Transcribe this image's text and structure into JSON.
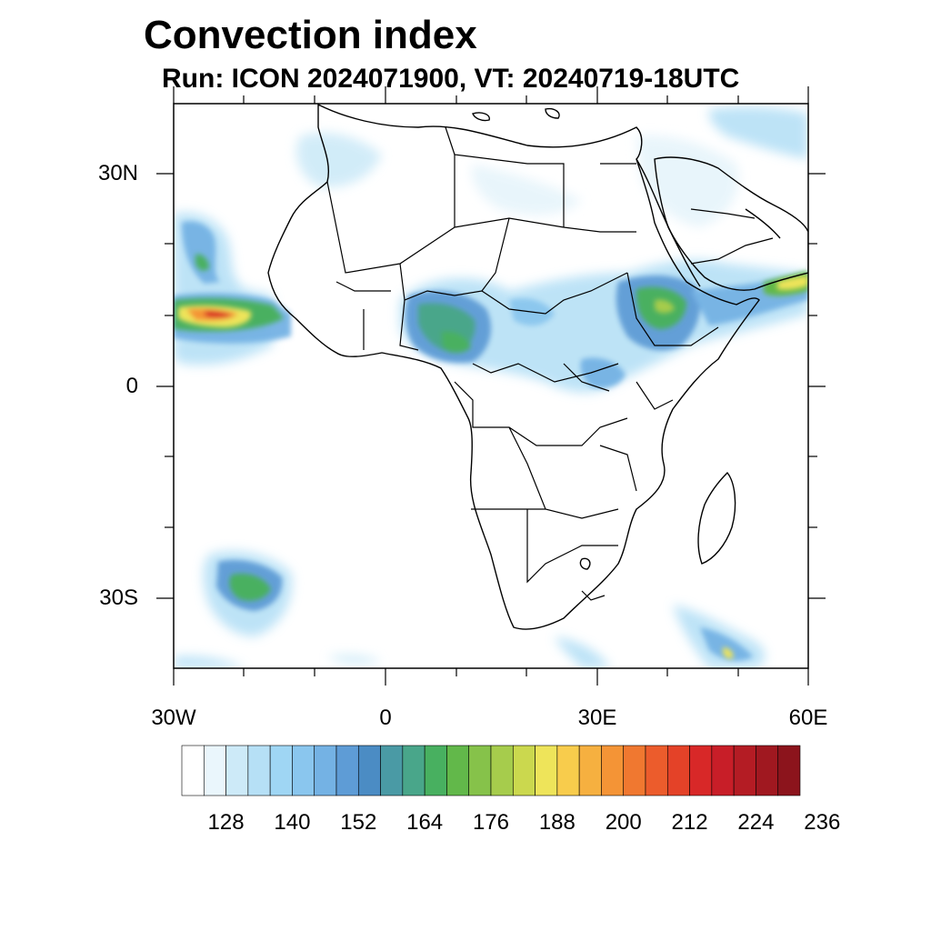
{
  "title": "Convection index",
  "subtitle": "Run: ICON 2024071900,  VT: 20240719-18UTC",
  "axes": {
    "y_ticks": [
      "30N",
      "0",
      "30S"
    ],
    "x_ticks": [
      "30W",
      "0",
      "30E",
      "60E"
    ]
  },
  "colorbar": {
    "labels": [
      "128",
      "140",
      "152",
      "164",
      "176",
      "188",
      "200",
      "212",
      "224",
      "236"
    ],
    "colors": [
      "#ffffff",
      "#eaf6fc",
      "#cdeaf8",
      "#b6e0f6",
      "#9fd6f4",
      "#8ac6ee",
      "#74b2e4",
      "#5e9cd6",
      "#4b8cc4",
      "#4a9aa5",
      "#49a68a",
      "#48b060",
      "#62b84a",
      "#86c24a",
      "#a6cc4c",
      "#cbd84e",
      "#eee45a",
      "#f8cc4c",
      "#f6b040",
      "#f49436",
      "#f07830",
      "#ec5c2c",
      "#e44228",
      "#d82828",
      "#c81e28",
      "#b41c24",
      "#a01820",
      "#8c141c"
    ]
  },
  "features": {
    "band_west_atlantic": "convection-band-west-atlantic",
    "cluster_nigeria": "convection-cluster-nigeria",
    "cluster_ethiopia": "convection-cluster-ethiopia",
    "cluster_south_atlantic": "convection-cluster-south-atlantic",
    "cluster_southwest_indian_ocean": "convection-cluster-sw-indian-ocean"
  }
}
